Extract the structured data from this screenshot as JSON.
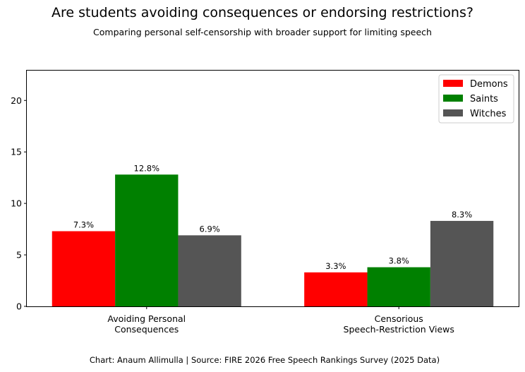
{
  "chart_data": {
    "type": "bar",
    "title": "Are students avoiding consequences or endorsing restrictions?",
    "subtitle": "Comparing personal self-censorship with broader support for limiting speech",
    "footer": "Chart: Anaum Allimulla | Source: FIRE 2026 Free Speech Rankings Survey (2025 Data)",
    "categories": [
      [
        "Avoiding Personal",
        "Consequences"
      ],
      [
        "Censorious",
        "Speech-Restriction Views"
      ]
    ],
    "series": [
      {
        "name": "Demons",
        "color": "#ff0000",
        "values": [
          7.3,
          3.3
        ],
        "labels": [
          "7.3%",
          "3.3%"
        ]
      },
      {
        "name": "Saints",
        "color": "#008000",
        "values": [
          12.8,
          3.8
        ],
        "labels": [
          "12.8%",
          "3.8%"
        ]
      },
      {
        "name": "Witches",
        "color": "#555555",
        "values": [
          6.9,
          8.3
        ],
        "labels": [
          "6.9%",
          "8.3%"
        ]
      }
    ],
    "yticks": [
      0,
      5,
      10,
      15,
      20
    ],
    "ylim": [
      0,
      22.9
    ],
    "legend_position": "top-right",
    "xlabel": "",
    "ylabel": ""
  }
}
